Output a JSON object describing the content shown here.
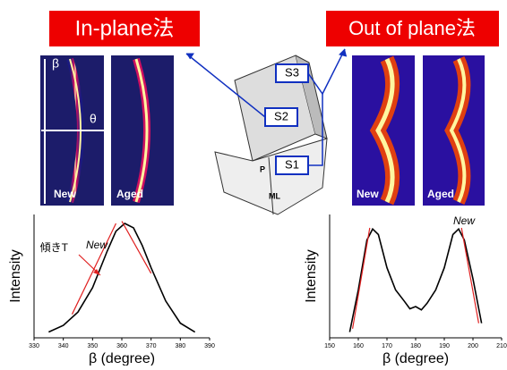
{
  "titles": {
    "left": "In-plane法",
    "right": "Out of plane法"
  },
  "images": [
    {
      "label": "New"
    },
    {
      "label": "Aged"
    },
    {
      "label": "New"
    },
    {
      "label": "Aged"
    }
  ],
  "image_axes": {
    "vertical": "β",
    "horizontal": "θ"
  },
  "diagram": {
    "labels": [
      "S3",
      "S2",
      "S1",
      "P",
      "ML"
    ]
  },
  "chart_data": [
    {
      "type": "line",
      "xlabel": "β (degree)",
      "ylabel": "Intensity",
      "annotations": [
        "New",
        "傾きT"
      ],
      "xlim": [
        330,
        390
      ],
      "xticks": [
        330,
        340,
        350,
        360,
        370,
        380,
        390
      ],
      "ylim": [
        0,
        1
      ],
      "series": [
        {
          "color": "#000000",
          "x": [
            335,
            340,
            345,
            350,
            355,
            358,
            361,
            364,
            367,
            370,
            375,
            380,
            385
          ],
          "values": [
            0.02,
            0.08,
            0.2,
            0.42,
            0.75,
            0.93,
            1.0,
            0.96,
            0.8,
            0.6,
            0.3,
            0.1,
            0.02
          ]
        },
        {
          "color": "#e02020",
          "x": [
            343,
            358
          ],
          "values": [
            0.18,
            1.0
          ]
        },
        {
          "color": "#e02020",
          "x": [
            360,
            370
          ],
          "values": [
            1.02,
            0.55
          ]
        }
      ]
    },
    {
      "type": "line",
      "xlabel": "β (degree)",
      "ylabel": "Intensity",
      "annotations": [
        "New"
      ],
      "xlim": [
        150,
        210
      ],
      "xticks": [
        150,
        160,
        170,
        180,
        190,
        200,
        210
      ],
      "ylim": [
        0,
        1
      ],
      "series": [
        {
          "color": "#000000",
          "x": [
            157,
            160,
            163,
            165,
            167,
            170,
            173,
            176,
            178,
            180,
            182,
            184,
            187,
            190,
            193,
            195,
            197,
            200,
            203
          ],
          "values": [
            0.02,
            0.4,
            0.85,
            0.95,
            0.9,
            0.6,
            0.4,
            0.3,
            0.23,
            0.25,
            0.22,
            0.28,
            0.4,
            0.6,
            0.9,
            0.95,
            0.85,
            0.5,
            0.1
          ]
        },
        {
          "color": "#e02020",
          "x": [
            158,
            164
          ],
          "values": [
            0.05,
            0.96
          ]
        },
        {
          "color": "#e02020",
          "x": [
            196,
            202
          ],
          "values": [
            0.96,
            0.1
          ]
        }
      ]
    }
  ]
}
